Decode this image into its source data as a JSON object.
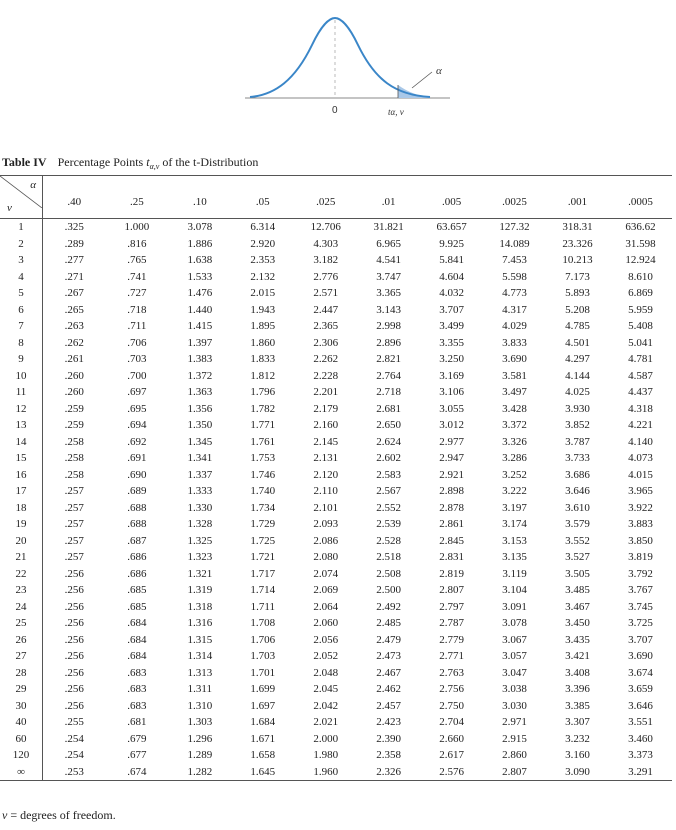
{
  "figure": {
    "alpha_label": "α",
    "zero_label": "0",
    "t_label": "tα, ν",
    "curve_color": "#3a86c8",
    "tail_color": "#a9c8e8"
  },
  "caption": {
    "label": "Table IV",
    "text_before": "Percentage Points ",
    "t_symbol": "t",
    "t_subscript": "α,ν",
    "text_after": " of the t-Distribution"
  },
  "table": {
    "corner_alpha": "α",
    "corner_nu": "ν",
    "columns": [
      ".40",
      ".25",
      ".10",
      ".05",
      ".025",
      ".01",
      ".005",
      ".0025",
      ".001",
      ".0005"
    ],
    "rows": [
      {
        "df": "1",
        "values": [
          ".325",
          "1.000",
          "3.078",
          "6.314",
          "12.706",
          "31.821",
          "63.657",
          "127.32",
          "318.31",
          "636.62"
        ]
      },
      {
        "df": "2",
        "values": [
          ".289",
          ".816",
          "1.886",
          "2.920",
          "4.303",
          "6.965",
          "9.925",
          "14.089",
          "23.326",
          "31.598"
        ]
      },
      {
        "df": "3",
        "values": [
          ".277",
          ".765",
          "1.638",
          "2.353",
          "3.182",
          "4.541",
          "5.841",
          "7.453",
          "10.213",
          "12.924"
        ]
      },
      {
        "df": "4",
        "values": [
          ".271",
          ".741",
          "1.533",
          "2.132",
          "2.776",
          "3.747",
          "4.604",
          "5.598",
          "7.173",
          "8.610"
        ]
      },
      {
        "df": "5",
        "values": [
          ".267",
          ".727",
          "1.476",
          "2.015",
          "2.571",
          "3.365",
          "4.032",
          "4.773",
          "5.893",
          "6.869"
        ]
      },
      {
        "df": "6",
        "values": [
          ".265",
          ".718",
          "1.440",
          "1.943",
          "2.447",
          "3.143",
          "3.707",
          "4.317",
          "5.208",
          "5.959"
        ]
      },
      {
        "df": "7",
        "values": [
          ".263",
          ".711",
          "1.415",
          "1.895",
          "2.365",
          "2.998",
          "3.499",
          "4.029",
          "4.785",
          "5.408"
        ]
      },
      {
        "df": "8",
        "values": [
          ".262",
          ".706",
          "1.397",
          "1.860",
          "2.306",
          "2.896",
          "3.355",
          "3.833",
          "4.501",
          "5.041"
        ]
      },
      {
        "df": "9",
        "values": [
          ".261",
          ".703",
          "1.383",
          "1.833",
          "2.262",
          "2.821",
          "3.250",
          "3.690",
          "4.297",
          "4.781"
        ]
      },
      {
        "df": "10",
        "values": [
          ".260",
          ".700",
          "1.372",
          "1.812",
          "2.228",
          "2.764",
          "3.169",
          "3.581",
          "4.144",
          "4.587"
        ]
      },
      {
        "df": "11",
        "values": [
          ".260",
          ".697",
          "1.363",
          "1.796",
          "2.201",
          "2.718",
          "3.106",
          "3.497",
          "4.025",
          "4.437"
        ]
      },
      {
        "df": "12",
        "values": [
          ".259",
          ".695",
          "1.356",
          "1.782",
          "2.179",
          "2.681",
          "3.055",
          "3.428",
          "3.930",
          "4.318"
        ]
      },
      {
        "df": "13",
        "values": [
          ".259",
          ".694",
          "1.350",
          "1.771",
          "2.160",
          "2.650",
          "3.012",
          "3.372",
          "3.852",
          "4.221"
        ]
      },
      {
        "df": "14",
        "values": [
          ".258",
          ".692",
          "1.345",
          "1.761",
          "2.145",
          "2.624",
          "2.977",
          "3.326",
          "3.787",
          "4.140"
        ]
      },
      {
        "df": "15",
        "values": [
          ".258",
          ".691",
          "1.341",
          "1.753",
          "2.131",
          "2.602",
          "2.947",
          "3.286",
          "3.733",
          "4.073"
        ]
      },
      {
        "df": "16",
        "values": [
          ".258",
          ".690",
          "1.337",
          "1.746",
          "2.120",
          "2.583",
          "2.921",
          "3.252",
          "3.686",
          "4.015"
        ]
      },
      {
        "df": "17",
        "values": [
          ".257",
          ".689",
          "1.333",
          "1.740",
          "2.110",
          "2.567",
          "2.898",
          "3.222",
          "3.646",
          "3.965"
        ]
      },
      {
        "df": "18",
        "values": [
          ".257",
          ".688",
          "1.330",
          "1.734",
          "2.101",
          "2.552",
          "2.878",
          "3.197",
          "3.610",
          "3.922"
        ]
      },
      {
        "df": "19",
        "values": [
          ".257",
          ".688",
          "1.328",
          "1.729",
          "2.093",
          "2.539",
          "2.861",
          "3.174",
          "3.579",
          "3.883"
        ]
      },
      {
        "df": "20",
        "values": [
          ".257",
          ".687",
          "1.325",
          "1.725",
          "2.086",
          "2.528",
          "2.845",
          "3.153",
          "3.552",
          "3.850"
        ]
      },
      {
        "df": "21",
        "values": [
          ".257",
          ".686",
          "1.323",
          "1.721",
          "2.080",
          "2.518",
          "2.831",
          "3.135",
          "3.527",
          "3.819"
        ]
      },
      {
        "df": "22",
        "values": [
          ".256",
          ".686",
          "1.321",
          "1.717",
          "2.074",
          "2.508",
          "2.819",
          "3.119",
          "3.505",
          "3.792"
        ]
      },
      {
        "df": "23",
        "values": [
          ".256",
          ".685",
          "1.319",
          "1.714",
          "2.069",
          "2.500",
          "2.807",
          "3.104",
          "3.485",
          "3.767"
        ]
      },
      {
        "df": "24",
        "values": [
          ".256",
          ".685",
          "1.318",
          "1.711",
          "2.064",
          "2.492",
          "2.797",
          "3.091",
          "3.467",
          "3.745"
        ]
      },
      {
        "df": "25",
        "values": [
          ".256",
          ".684",
          "1.316",
          "1.708",
          "2.060",
          "2.485",
          "2.787",
          "3.078",
          "3.450",
          "3.725"
        ]
      },
      {
        "df": "26",
        "values": [
          ".256",
          ".684",
          "1.315",
          "1.706",
          "2.056",
          "2.479",
          "2.779",
          "3.067",
          "3.435",
          "3.707"
        ]
      },
      {
        "df": "27",
        "values": [
          ".256",
          ".684",
          "1.314",
          "1.703",
          "2.052",
          "2.473",
          "2.771",
          "3.057",
          "3.421",
          "3.690"
        ]
      },
      {
        "df": "28",
        "values": [
          ".256",
          ".683",
          "1.313",
          "1.701",
          "2.048",
          "2.467",
          "2.763",
          "3.047",
          "3.408",
          "3.674"
        ]
      },
      {
        "df": "29",
        "values": [
          ".256",
          ".683",
          "1.311",
          "1.699",
          "2.045",
          "2.462",
          "2.756",
          "3.038",
          "3.396",
          "3.659"
        ]
      },
      {
        "df": "30",
        "values": [
          ".256",
          ".683",
          "1.310",
          "1.697",
          "2.042",
          "2.457",
          "2.750",
          "3.030",
          "3.385",
          "3.646"
        ]
      },
      {
        "df": "40",
        "values": [
          ".255",
          ".681",
          "1.303",
          "1.684",
          "2.021",
          "2.423",
          "2.704",
          "2.971",
          "3.307",
          "3.551"
        ]
      },
      {
        "df": "60",
        "values": [
          ".254",
          ".679",
          "1.296",
          "1.671",
          "2.000",
          "2.390",
          "2.660",
          "2.915",
          "3.232",
          "3.460"
        ]
      },
      {
        "df": "120",
        "values": [
          ".254",
          ".677",
          "1.289",
          "1.658",
          "1.980",
          "2.358",
          "2.617",
          "2.860",
          "3.160",
          "3.373"
        ]
      },
      {
        "df": "∞",
        "values": [
          ".253",
          ".674",
          "1.282",
          "1.645",
          "1.960",
          "2.326",
          "2.576",
          "2.807",
          "3.090",
          "3.291"
        ]
      }
    ]
  },
  "footnote": {
    "nu": "ν",
    "text": " = degrees of freedom."
  }
}
